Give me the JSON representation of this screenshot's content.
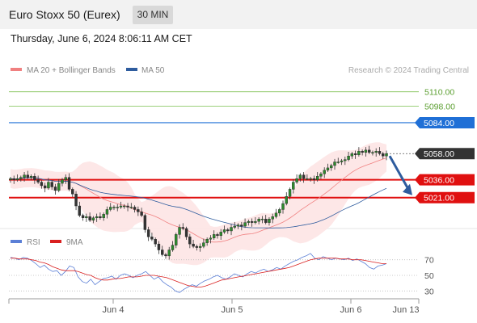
{
  "header": {
    "instrument": "Euro Stoxx 50 (Eurex)",
    "timeframe": "30 MIN",
    "datetime": "Thursday, June 6, 2024 8:06:11 AM CET"
  },
  "legend": {
    "ma20_label": "MA 20 + Bollinger Bands",
    "ma50_label": "MA 50",
    "ma20_color": "#f08080",
    "ma50_color": "#2e5c9e",
    "credit": "Research © 2024 Trading Central"
  },
  "rsi_legend": {
    "rsi_label": "RSI",
    "ma9_label": "9MA",
    "rsi_color": "#5b7fd6",
    "ma9_color": "#d92020"
  },
  "chart_data": {
    "type": "candlestick",
    "y_range": [
      4995,
      5122
    ],
    "x_ticks": [
      "Jun 4",
      "Jun 5",
      "Jun 6",
      "Jun 13"
    ],
    "levels": [
      {
        "label": "5110.00",
        "value": 5110,
        "color": "#7bbf4e",
        "style": "target"
      },
      {
        "label": "5098.00",
        "value": 5098,
        "color": "#7bbf4e",
        "style": "target"
      },
      {
        "label": "5084.00",
        "value": 5084,
        "color": "#1f6fd6",
        "style": "pivot"
      },
      {
        "label": "5058.00",
        "value": 5058,
        "color": "#333333",
        "style": "last"
      },
      {
        "label": "5036.00",
        "value": 5036,
        "color": "#e01010",
        "style": "support"
      },
      {
        "label": "5021.00",
        "value": 5021,
        "color": "#e01010",
        "style": "support"
      }
    ],
    "closes": [
      5037,
      5036,
      5037,
      5038,
      5040,
      5038,
      5039,
      5036,
      5034,
      5031,
      5029,
      5034,
      5030,
      5027,
      5033,
      5036,
      5038,
      5028,
      5024,
      5014,
      5006,
      5004,
      5005,
      5002,
      5004,
      5005,
      5004,
      5007,
      5011,
      5013,
      5013,
      5013,
      5014,
      5014,
      5013,
      5013,
      5011,
      5009,
      5006,
      4994,
      4988,
      4986,
      4982,
      4977,
      4973,
      4972,
      4977,
      4981,
      4990,
      4996,
      4995,
      4988,
      4982,
      4980,
      4979,
      4980,
      4983,
      4986,
      4987,
      4990,
      4989,
      4992,
      4994,
      4993,
      4996,
      4997,
      4998,
      4997,
      5000,
      5001,
      5000,
      5001,
      5003,
      5003,
      5000,
      5003,
      5005,
      5008,
      5011,
      5016,
      5022,
      5028,
      5034,
      5037,
      5040,
      5037,
      5037,
      5037,
      5036,
      5039,
      5041,
      5044,
      5046,
      5048,
      5051,
      5051,
      5052,
      5053,
      5056,
      5058,
      5057,
      5060,
      5059,
      5061,
      5059,
      5059,
      5060,
      5058,
      5056,
      5058
    ],
    "rsi": {
      "y_range": [
        20,
        80
      ],
      "levels": [
        70,
        50,
        30
      ],
      "rsi_values": [
        73,
        72,
        70,
        73,
        72,
        69,
        65,
        60,
        63,
        58,
        55,
        56,
        50,
        55,
        62,
        60,
        48,
        42,
        40,
        45,
        38,
        42,
        46,
        47,
        49,
        45,
        50,
        52,
        50,
        47,
        50,
        52,
        55,
        50,
        45,
        48,
        42,
        38,
        35,
        30,
        28,
        32,
        35,
        38,
        36,
        40,
        43,
        45,
        48,
        50,
        47,
        45,
        48,
        52,
        50,
        48,
        52,
        55,
        53,
        56,
        58,
        55,
        57,
        60,
        58,
        62,
        65,
        68,
        70,
        73,
        75,
        78,
        72,
        70,
        74,
        72,
        70,
        72,
        71,
        70,
        72,
        69,
        71,
        68,
        65,
        60,
        58,
        62,
        63,
        65
      ],
      "ma9_values": [
        72,
        72,
        71,
        71,
        71,
        70,
        69,
        67,
        66,
        64,
        61,
        59,
        57,
        56,
        56,
        56,
        55,
        53,
        51,
        50,
        47,
        45,
        44,
        44,
        45,
        46,
        46,
        47,
        48,
        48,
        48,
        49,
        50,
        50,
        50,
        49,
        48,
        47,
        45,
        43,
        41,
        39,
        37,
        36,
        35,
        35,
        36,
        38,
        40,
        42,
        44,
        45,
        46,
        47,
        48,
        49,
        50,
        51,
        52,
        53,
        54,
        55,
        56,
        57,
        58,
        59,
        60,
        62,
        64,
        66,
        68,
        70,
        71,
        72,
        72,
        72,
        72,
        72,
        71,
        71,
        71,
        70,
        70,
        70,
        69,
        68,
        67,
        66,
        65,
        65
      ]
    }
  }
}
